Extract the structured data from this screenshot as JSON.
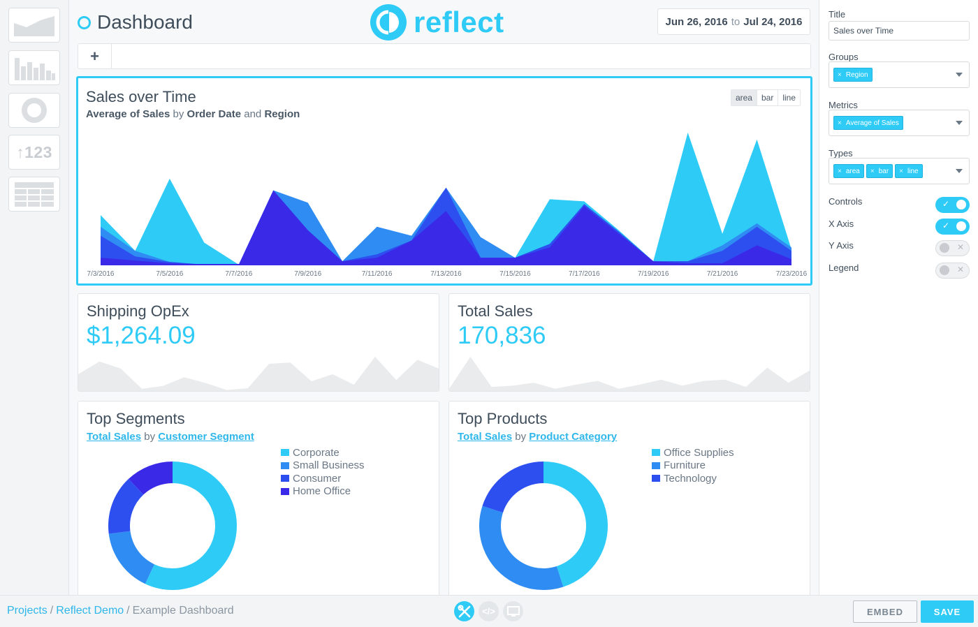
{
  "app": {
    "title": "Dashboard",
    "brand": "reflect",
    "accent": "#2ecbf7"
  },
  "date_range": {
    "start": "Jun 26, 2016",
    "connector": "to",
    "end": "Jul 24, 2016"
  },
  "toolbox": {
    "items": [
      {
        "name": "area-chart-tool",
        "icon": "area-chart-icon"
      },
      {
        "name": "bar-chart-tool",
        "icon": "bar-chart-icon"
      },
      {
        "name": "donut-chart-tool",
        "icon": "donut-chart-icon"
      },
      {
        "name": "number-tool",
        "icon": "number-icon",
        "label": "↑123"
      },
      {
        "name": "table-tool",
        "icon": "table-icon"
      }
    ]
  },
  "add_bar": {
    "add_label": "+"
  },
  "sales_card": {
    "title": "Sales over Time",
    "subtitle": {
      "metric": "Average of Sales",
      "by": "by",
      "dim1": "Order Date",
      "and": "and",
      "dim2": "Region"
    },
    "type_buttons": [
      "area",
      "bar",
      "line"
    ],
    "active_type": "area"
  },
  "shipping_card": {
    "title": "Shipping OpEx",
    "value": "$1,264.09"
  },
  "total_sales_card": {
    "title": "Total Sales",
    "value": "170,836"
  },
  "segments_card": {
    "title": "Top Segments",
    "metric": "Total Sales",
    "by": "by",
    "dimension": "Customer Segment"
  },
  "products_card": {
    "title": "Top Products",
    "metric": "Total Sales",
    "by": "by",
    "dimension": "Product Category"
  },
  "chart_data": [
    {
      "type": "area",
      "x": [
        "7/3/2016",
        "7/4/2016",
        "7/5/2016",
        "7/6/2016",
        "7/7/2016",
        "7/8/2016",
        "7/9/2016",
        "7/10/2016",
        "7/11/2016",
        "7/12/2016",
        "7/13/2016",
        "7/14/2016",
        "7/15/2016",
        "7/16/2016",
        "7/17/2016",
        "7/18/2016",
        "7/19/2016",
        "7/20/2016",
        "7/21/2016",
        "7/22/2016",
        "7/23/2016"
      ],
      "tick_labels": [
        "7/3/2016",
        "7/5/2016",
        "7/7/2016",
        "7/9/2016",
        "7/11/2016",
        "7/13/2016",
        "7/15/2016",
        "7/17/2016",
        "7/19/2016",
        "7/21/2016",
        "7/23/2016"
      ],
      "ylim": [
        0,
        200
      ],
      "series": [
        {
          "color": "#2ecbf7",
          "values": [
            72,
            20,
            125,
            32,
            0,
            108,
            40,
            5,
            20,
            30,
            110,
            30,
            10,
            95,
            92,
            50,
            5,
            192,
            45,
            182,
            22
          ]
        },
        {
          "color": "#2e8cf2",
          "values": [
            55,
            20,
            4,
            0,
            0,
            108,
            90,
            5,
            55,
            42,
            112,
            40,
            10,
            30,
            85,
            45,
            5,
            5,
            28,
            60,
            25
          ]
        },
        {
          "color": "#2d4ff0",
          "values": [
            42,
            12,
            4,
            0,
            0,
            108,
            50,
            5,
            15,
            35,
            112,
            10,
            10,
            30,
            88,
            48,
            5,
            5,
            20,
            55,
            20
          ]
        },
        {
          "color": "#3a2ae8",
          "values": [
            10,
            6,
            2,
            0,
            0,
            108,
            50,
            5,
            10,
            35,
            78,
            10,
            10,
            25,
            85,
            45,
            5,
            2,
            2,
            28,
            8
          ]
        }
      ],
      "grid": false,
      "legend": "none"
    },
    {
      "type": "area",
      "values": [
        30,
        52,
        40,
        5,
        10,
        25,
        15,
        3,
        6,
        48,
        50,
        18,
        30,
        12,
        60,
        20,
        55,
        40
      ],
      "color": "#eaebec"
    },
    {
      "type": "area",
      "values": [
        5,
        58,
        8,
        10,
        15,
        5,
        12,
        18,
        5,
        12,
        20,
        10,
        18,
        20,
        8,
        40,
        15,
        35
      ],
      "color": "#eaebec"
    },
    {
      "type": "pie",
      "series": [
        "Corporate",
        "Small Business",
        "Consumer",
        "Home Office"
      ],
      "values": [
        57,
        16,
        15,
        12
      ],
      "colors": [
        "#2ecbf7",
        "#2e8cf2",
        "#2d4ff0",
        "#3a2ae8"
      ],
      "legend": "right"
    },
    {
      "type": "pie",
      "series": [
        "Office Supplies",
        "Furniture",
        "Technology"
      ],
      "values": [
        45,
        35,
        20
      ],
      "colors": [
        "#2ecbf7",
        "#2e8cf2",
        "#2d4ff0"
      ],
      "legend": "right"
    }
  ],
  "panel": {
    "title_label": "Title",
    "title_value": "Sales over Time",
    "groups_label": "Groups",
    "groups": [
      "Region"
    ],
    "metrics_label": "Metrics",
    "metrics": [
      "Average of Sales"
    ],
    "types_label": "Types",
    "types": [
      "area",
      "bar",
      "line"
    ],
    "tag_remove": "×",
    "toggles": [
      {
        "label": "Controls",
        "on": true
      },
      {
        "label": "X Axis",
        "on": true
      },
      {
        "label": "Y Axis",
        "on": false
      },
      {
        "label": "Legend",
        "on": false
      }
    ]
  },
  "footer": {
    "crumbs": [
      "Projects",
      "Reflect Demo",
      "Example Dashboard"
    ],
    "separator": "/",
    "modes": [
      {
        "name": "design-mode",
        "icon": "tools-icon",
        "active": true
      },
      {
        "name": "code-mode",
        "icon": "code-icon",
        "label": "</>",
        "active": false
      },
      {
        "name": "preview-mode",
        "icon": "monitor-icon",
        "active": false
      }
    ],
    "embed_label": "EMBED",
    "save_label": "SAVE"
  }
}
